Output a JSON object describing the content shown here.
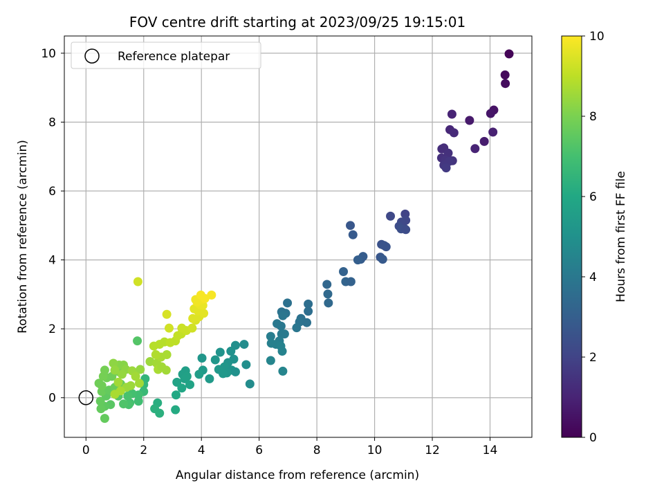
{
  "chart_data": {
    "type": "scatter",
    "title": "FOV centre drift starting at 2023/09/25 19:15:01",
    "xlabel": "Angular distance from reference (arcmin)",
    "ylabel": "Rotation from reference (arcmin)",
    "xlim": [
      -0.75,
      15.45
    ],
    "ylim": [
      -1.15,
      10.5
    ],
    "xticks": [
      0,
      2,
      4,
      6,
      8,
      10,
      12,
      14
    ],
    "yticks": [
      0,
      2,
      4,
      6,
      8,
      10
    ],
    "grid": true,
    "legend": {
      "position": "top-left",
      "entries": [
        "Reference platepar"
      ]
    },
    "reference_point": {
      "x": 0,
      "y": 0,
      "label": "Reference platepar",
      "marker": "open-circle"
    },
    "colorbar": {
      "label": "Hours from first FF file",
      "range": [
        0,
        10
      ],
      "ticks": [
        0,
        2,
        4,
        6,
        8,
        10
      ],
      "colormap": "viridis"
    },
    "points": [
      {
        "x": 14.66,
        "y": 9.98,
        "c": 0.1
      },
      {
        "x": 14.52,
        "y": 9.37,
        "c": 0.2
      },
      {
        "x": 14.53,
        "y": 9.12,
        "c": 0.3
      },
      {
        "x": 14.13,
        "y": 8.35,
        "c": 0.5
      },
      {
        "x": 14.02,
        "y": 8.25,
        "c": 0.6
      },
      {
        "x": 12.68,
        "y": 8.23,
        "c": 1.0
      },
      {
        "x": 13.29,
        "y": 8.05,
        "c": 0.7
      },
      {
        "x": 12.61,
        "y": 7.78,
        "c": 1.1
      },
      {
        "x": 12.75,
        "y": 7.69,
        "c": 1.2
      },
      {
        "x": 14.1,
        "y": 7.71,
        "c": 0.9
      },
      {
        "x": 13.8,
        "y": 7.44,
        "c": 0.8
      },
      {
        "x": 13.48,
        "y": 7.23,
        "c": 1.0
      },
      {
        "x": 12.33,
        "y": 7.22,
        "c": 1.3
      },
      {
        "x": 12.4,
        "y": 7.25,
        "c": 1.3
      },
      {
        "x": 12.55,
        "y": 7.1,
        "c": 1.4
      },
      {
        "x": 12.32,
        "y": 6.96,
        "c": 1.4
      },
      {
        "x": 12.45,
        "y": 6.9,
        "c": 1.5
      },
      {
        "x": 12.7,
        "y": 6.88,
        "c": 1.5
      },
      {
        "x": 12.58,
        "y": 6.86,
        "c": 1.6
      },
      {
        "x": 12.4,
        "y": 6.75,
        "c": 1.6
      },
      {
        "x": 12.48,
        "y": 6.67,
        "c": 1.7
      },
      {
        "x": 11.06,
        "y": 5.33,
        "c": 2.0
      },
      {
        "x": 10.55,
        "y": 5.27,
        "c": 2.2
      },
      {
        "x": 11.08,
        "y": 5.15,
        "c": 2.1
      },
      {
        "x": 10.93,
        "y": 5.1,
        "c": 2.2
      },
      {
        "x": 10.85,
        "y": 4.98,
        "c": 2.3
      },
      {
        "x": 11.02,
        "y": 4.92,
        "c": 2.2
      },
      {
        "x": 10.92,
        "y": 4.9,
        "c": 2.4
      },
      {
        "x": 11.08,
        "y": 4.88,
        "c": 2.3
      },
      {
        "x": 9.16,
        "y": 5.0,
        "c": 2.7
      },
      {
        "x": 9.25,
        "y": 4.73,
        "c": 2.8
      },
      {
        "x": 10.24,
        "y": 4.45,
        "c": 2.5
      },
      {
        "x": 10.33,
        "y": 4.42,
        "c": 2.6
      },
      {
        "x": 10.4,
        "y": 4.38,
        "c": 2.6
      },
      {
        "x": 9.6,
        "y": 4.1,
        "c": 2.9
      },
      {
        "x": 10.2,
        "y": 4.08,
        "c": 2.7
      },
      {
        "x": 9.52,
        "y": 4.02,
        "c": 2.9
      },
      {
        "x": 9.42,
        "y": 4.0,
        "c": 3.0
      },
      {
        "x": 10.28,
        "y": 4.02,
        "c": 2.8
      },
      {
        "x": 8.92,
        "y": 3.66,
        "c": 3.1
      },
      {
        "x": 9.0,
        "y": 3.37,
        "c": 3.2
      },
      {
        "x": 9.18,
        "y": 3.37,
        "c": 3.1
      },
      {
        "x": 8.35,
        "y": 3.29,
        "c": 3.3
      },
      {
        "x": 8.38,
        "y": 3.01,
        "c": 3.4
      },
      {
        "x": 7.7,
        "y": 2.72,
        "c": 3.6
      },
      {
        "x": 6.98,
        "y": 2.75,
        "c": 3.7
      },
      {
        "x": 8.4,
        "y": 2.75,
        "c": 3.4
      },
      {
        "x": 7.7,
        "y": 2.51,
        "c": 3.6
      },
      {
        "x": 6.78,
        "y": 2.49,
        "c": 3.8
      },
      {
        "x": 6.92,
        "y": 2.45,
        "c": 3.8
      },
      {
        "x": 6.82,
        "y": 2.38,
        "c": 3.9
      },
      {
        "x": 7.45,
        "y": 2.3,
        "c": 3.7
      },
      {
        "x": 7.4,
        "y": 2.2,
        "c": 3.8
      },
      {
        "x": 7.65,
        "y": 2.18,
        "c": 3.7
      },
      {
        "x": 6.62,
        "y": 2.15,
        "c": 4.0
      },
      {
        "x": 6.76,
        "y": 2.08,
        "c": 4.0
      },
      {
        "x": 7.3,
        "y": 2.03,
        "c": 3.9
      },
      {
        "x": 6.88,
        "y": 1.85,
        "c": 4.1
      },
      {
        "x": 6.78,
        "y": 1.85,
        "c": 4.1
      },
      {
        "x": 6.4,
        "y": 1.78,
        "c": 4.2
      },
      {
        "x": 6.7,
        "y": 1.65,
        "c": 4.2
      },
      {
        "x": 6.42,
        "y": 1.58,
        "c": 4.3
      },
      {
        "x": 6.58,
        "y": 1.55,
        "c": 4.3
      },
      {
        "x": 6.75,
        "y": 1.5,
        "c": 4.4
      },
      {
        "x": 6.8,
        "y": 1.35,
        "c": 4.4
      },
      {
        "x": 6.4,
        "y": 1.08,
        "c": 4.5
      },
      {
        "x": 6.82,
        "y": 0.77,
        "c": 4.5
      },
      {
        "x": 5.48,
        "y": 1.55,
        "c": 4.8
      },
      {
        "x": 5.18,
        "y": 1.52,
        "c": 4.9
      },
      {
        "x": 5.02,
        "y": 1.35,
        "c": 5.0
      },
      {
        "x": 4.65,
        "y": 1.32,
        "c": 5.1
      },
      {
        "x": 4.48,
        "y": 1.1,
        "c": 5.2
      },
      {
        "x": 4.02,
        "y": 1.15,
        "c": 5.2
      },
      {
        "x": 5.12,
        "y": 1.12,
        "c": 5.0
      },
      {
        "x": 4.92,
        "y": 1.02,
        "c": 5.1
      },
      {
        "x": 5.55,
        "y": 0.96,
        "c": 4.9
      },
      {
        "x": 4.8,
        "y": 0.9,
        "c": 5.2
      },
      {
        "x": 4.6,
        "y": 0.82,
        "c": 5.3
      },
      {
        "x": 5.05,
        "y": 0.8,
        "c": 5.1
      },
      {
        "x": 5.18,
        "y": 0.75,
        "c": 5.0
      },
      {
        "x": 4.88,
        "y": 0.72,
        "c": 5.2
      },
      {
        "x": 4.75,
        "y": 0.7,
        "c": 5.3
      },
      {
        "x": 4.05,
        "y": 0.8,
        "c": 5.4
      },
      {
        "x": 3.92,
        "y": 0.68,
        "c": 5.5
      },
      {
        "x": 3.45,
        "y": 0.78,
        "c": 5.6
      },
      {
        "x": 3.35,
        "y": 0.68,
        "c": 5.6
      },
      {
        "x": 3.5,
        "y": 0.62,
        "c": 5.7
      },
      {
        "x": 3.42,
        "y": 0.55,
        "c": 5.7
      },
      {
        "x": 4.28,
        "y": 0.55,
        "c": 5.4
      },
      {
        "x": 3.15,
        "y": 0.45,
        "c": 5.8
      },
      {
        "x": 3.6,
        "y": 0.38,
        "c": 5.8
      },
      {
        "x": 5.68,
        "y": 0.4,
        "c": 4.8
      },
      {
        "x": 3.32,
        "y": 0.28,
        "c": 5.9
      },
      {
        "x": 3.12,
        "y": 0.08,
        "c": 6.0
      },
      {
        "x": 2.48,
        "y": -0.15,
        "c": 6.2
      },
      {
        "x": 2.38,
        "y": -0.32,
        "c": 6.3
      },
      {
        "x": 2.55,
        "y": -0.45,
        "c": 6.3
      },
      {
        "x": 3.1,
        "y": -0.35,
        "c": 6.1
      },
      {
        "x": 2.05,
        "y": 0.55,
        "c": 6.5
      },
      {
        "x": 2.0,
        "y": 0.38,
        "c": 6.6
      },
      {
        "x": 2.0,
        "y": 0.18,
        "c": 6.7
      },
      {
        "x": 1.82,
        "y": 0.08,
        "c": 6.9
      },
      {
        "x": 1.82,
        "y": -0.1,
        "c": 6.9
      },
      {
        "x": 1.6,
        "y": 0.12,
        "c": 7.0
      },
      {
        "x": 1.52,
        "y": -0.15,
        "c": 7.0
      },
      {
        "x": 1.48,
        "y": -0.2,
        "c": 7.1
      },
      {
        "x": 1.3,
        "y": -0.18,
        "c": 7.2
      },
      {
        "x": 1.45,
        "y": 0.05,
        "c": 7.1
      },
      {
        "x": 1.12,
        "y": 0.05,
        "c": 7.3
      },
      {
        "x": 0.85,
        "y": -0.2,
        "c": 7.4
      },
      {
        "x": 0.65,
        "y": -0.25,
        "c": 7.5
      },
      {
        "x": 0.52,
        "y": -0.32,
        "c": 7.6
      },
      {
        "x": 0.65,
        "y": -0.6,
        "c": 7.6
      },
      {
        "x": 0.5,
        "y": -0.1,
        "c": 7.6
      },
      {
        "x": 0.7,
        "y": 0.05,
        "c": 7.5
      },
      {
        "x": 0.55,
        "y": 0.18,
        "c": 7.7
      },
      {
        "x": 0.8,
        "y": 0.22,
        "c": 7.6
      },
      {
        "x": 0.55,
        "y": 0.35,
        "c": 7.8
      },
      {
        "x": 0.45,
        "y": 0.42,
        "c": 7.8
      },
      {
        "x": 0.72,
        "y": 0.58,
        "c": 7.8
      },
      {
        "x": 0.6,
        "y": 0.62,
        "c": 7.9
      },
      {
        "x": 0.65,
        "y": 0.8,
        "c": 7.9
      },
      {
        "x": 1.0,
        "y": 0.3,
        "c": 7.7
      },
      {
        "x": 1.2,
        "y": 0.4,
        "c": 7.6
      },
      {
        "x": 1.05,
        "y": 0.8,
        "c": 8.0
      },
      {
        "x": 1.15,
        "y": 0.75,
        "c": 7.9
      },
      {
        "x": 0.9,
        "y": 0.62,
        "c": 7.8
      },
      {
        "x": 1.78,
        "y": 1.65,
        "c": 7.3
      },
      {
        "x": 1.15,
        "y": 0.95,
        "c": 8.2
      },
      {
        "x": 0.95,
        "y": 1.0,
        "c": 8.3
      },
      {
        "x": 1.3,
        "y": 0.95,
        "c": 8.2
      },
      {
        "x": 1.38,
        "y": 0.82,
        "c": 8.3
      },
      {
        "x": 1.25,
        "y": 0.68,
        "c": 8.4
      },
      {
        "x": 1.0,
        "y": 0.8,
        "c": 8.4
      },
      {
        "x": 1.6,
        "y": 0.78,
        "c": 8.5
      },
      {
        "x": 1.88,
        "y": 0.82,
        "c": 8.4
      },
      {
        "x": 1.72,
        "y": 0.62,
        "c": 8.6
      },
      {
        "x": 1.85,
        "y": 0.42,
        "c": 8.6
      },
      {
        "x": 1.55,
        "y": 0.35,
        "c": 8.5
      },
      {
        "x": 1.12,
        "y": 0.45,
        "c": 8.6
      },
      {
        "x": 1.4,
        "y": 0.3,
        "c": 8.5
      },
      {
        "x": 1.2,
        "y": 0.2,
        "c": 8.7
      },
      {
        "x": 1.0,
        "y": 0.1,
        "c": 8.7
      },
      {
        "x": 2.22,
        "y": 1.05,
        "c": 8.5
      },
      {
        "x": 2.45,
        "y": 1.0,
        "c": 8.6
      },
      {
        "x": 2.5,
        "y": 0.82,
        "c": 8.7
      },
      {
        "x": 2.62,
        "y": 0.9,
        "c": 8.6
      },
      {
        "x": 2.78,
        "y": 0.8,
        "c": 8.6
      },
      {
        "x": 2.6,
        "y": 1.18,
        "c": 8.7
      },
      {
        "x": 2.42,
        "y": 1.25,
        "c": 8.8
      },
      {
        "x": 2.8,
        "y": 1.25,
        "c": 8.7
      },
      {
        "x": 2.35,
        "y": 1.5,
        "c": 8.9
      },
      {
        "x": 2.55,
        "y": 1.55,
        "c": 8.9
      },
      {
        "x": 2.72,
        "y": 1.62,
        "c": 8.9
      },
      {
        "x": 2.92,
        "y": 1.6,
        "c": 9.0
      },
      {
        "x": 3.1,
        "y": 1.65,
        "c": 9.0
      },
      {
        "x": 3.18,
        "y": 1.8,
        "c": 9.1
      },
      {
        "x": 3.3,
        "y": 1.85,
        "c": 9.1
      },
      {
        "x": 3.32,
        "y": 2.02,
        "c": 9.2
      },
      {
        "x": 3.48,
        "y": 1.95,
        "c": 9.2
      },
      {
        "x": 2.88,
        "y": 2.02,
        "c": 9.3
      },
      {
        "x": 2.8,
        "y": 2.42,
        "c": 9.4
      },
      {
        "x": 3.68,
        "y": 2.02,
        "c": 9.3
      },
      {
        "x": 3.8,
        "y": 2.25,
        "c": 9.4
      },
      {
        "x": 3.7,
        "y": 2.3,
        "c": 9.5
      },
      {
        "x": 3.92,
        "y": 2.35,
        "c": 9.5
      },
      {
        "x": 3.75,
        "y": 2.58,
        "c": 9.6
      },
      {
        "x": 3.88,
        "y": 2.52,
        "c": 9.6
      },
      {
        "x": 4.08,
        "y": 2.45,
        "c": 9.6
      },
      {
        "x": 3.95,
        "y": 2.7,
        "c": 9.7
      },
      {
        "x": 4.05,
        "y": 2.68,
        "c": 9.7
      },
      {
        "x": 3.85,
        "y": 2.78,
        "c": 9.8
      },
      {
        "x": 3.8,
        "y": 2.85,
        "c": 9.8
      },
      {
        "x": 4.0,
        "y": 2.85,
        "c": 9.8
      },
      {
        "x": 3.98,
        "y": 2.98,
        "c": 9.9
      },
      {
        "x": 4.35,
        "y": 2.98,
        "c": 9.9
      },
      {
        "x": 4.12,
        "y": 2.88,
        "c": 9.9
      },
      {
        "x": 1.8,
        "y": 3.37,
        "c": 9.3
      }
    ]
  }
}
